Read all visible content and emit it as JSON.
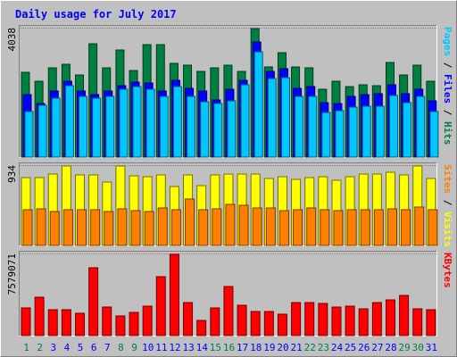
{
  "chart_data": {
    "type": "bar",
    "title": "Daily usage for July 2017",
    "categories": [
      "1",
      "2",
      "3",
      "4",
      "5",
      "6",
      "7",
      "8",
      "9",
      "10",
      "11",
      "12",
      "13",
      "14",
      "15",
      "16",
      "17",
      "18",
      "19",
      "20",
      "21",
      "22",
      "23",
      "24",
      "25",
      "26",
      "27",
      "28",
      "29",
      "30",
      "31"
    ],
    "weekend_days": [
      "1",
      "2",
      "8",
      "9",
      "15",
      "16",
      "22",
      "23",
      "29",
      "30"
    ],
    "panels": [
      {
        "id": "hits-files-pages",
        "ymax_label": "4038",
        "ymax": 4038,
        "right_labels": [
          {
            "text": "Pages",
            "color": "#00c8ff"
          },
          {
            "text": " / ",
            "color": "#000000"
          },
          {
            "text": "Files",
            "color": "#0000ff"
          },
          {
            "text": " / ",
            "color": "#000000"
          },
          {
            "text": "Hits",
            "color": "#008040"
          }
        ],
        "series": [
          {
            "name": "Hits",
            "color": "#008040",
            "values": [
              2640,
              2380,
              2780,
              2890,
              2570,
              3540,
              2780,
              3340,
              2690,
              3510,
              3510,
              2930,
              2870,
              2660,
              2780,
              2860,
              2660,
              4020,
              2800,
              3270,
              2820,
              2790,
              2120,
              2380,
              2210,
              2250,
              2220,
              2940,
              2570,
              2860,
              2360
            ]
          },
          {
            "name": "Files",
            "color": "#0000ff",
            "values": [
              1940,
              1680,
              2070,
              2380,
              2070,
              1940,
              2050,
              2240,
              2340,
              2310,
              2070,
              2400,
              2150,
              2070,
              1780,
              2110,
              2390,
              3580,
              2660,
              2760,
              2140,
              2190,
              1710,
              1680,
              1900,
              1950,
              1980,
              2250,
              1980,
              2110,
              1760
            ]
          },
          {
            "name": "Pages",
            "color": "#00c8ff",
            "values": [
              1420,
              1610,
              1830,
              2230,
              1900,
              1840,
              1880,
              2110,
              2200,
              2120,
              1900,
              2190,
              1880,
              1730,
              1660,
              1750,
              2250,
              3300,
              2460,
              2470,
              1880,
              1880,
              1380,
              1440,
              1550,
              1590,
              1600,
              1920,
              1700,
              1890,
              1420
            ]
          }
        ]
      },
      {
        "id": "visits-sites",
        "ymax_label": "934",
        "ymax": 934,
        "right_labels": [
          {
            "text": "Sites",
            "color": "#ff8000"
          },
          {
            "text": " / ",
            "color": "#000000"
          },
          {
            "text": "Visits",
            "color": "#ffff00"
          }
        ],
        "series": [
          {
            "name": "Visits",
            "color": "#ffff00",
            "values": [
              790,
              790,
              830,
              920,
              820,
              820,
              740,
              920,
              810,
              800,
              820,
              690,
              820,
              700,
              820,
              830,
              830,
              830,
              780,
              800,
              770,
              790,
              800,
              760,
              800,
              830,
              830,
              850,
              820,
              920,
              780
            ]
          },
          {
            "name": "Sites",
            "color": "#ff8000",
            "values": [
              420,
              430,
              390,
              410,
              420,
              420,
              390,
              430,
              400,
              390,
              440,
              420,
              540,
              410,
              430,
              480,
              470,
              440,
              440,
              400,
              420,
              440,
              420,
              400,
              410,
              420,
              410,
              430,
              420,
              450,
              410
            ]
          }
        ]
      },
      {
        "id": "kbytes",
        "ymax_label": "7579071",
        "ymax": 7579071,
        "right_labels": [
          {
            "text": "KBytes",
            "color": "#ff0000"
          }
        ],
        "series": [
          {
            "name": "KBytes",
            "color": "#ff0000",
            "values": [
              2520000,
              3560000,
              2360000,
              2410000,
              2040000,
              6240000,
              2670000,
              1800000,
              2150000,
              2730000,
              5410000,
              7480000,
              3020000,
              1370000,
              2580000,
              4550000,
              2770000,
              2220000,
              2200000,
              1980000,
              3080000,
              3080000,
              2970000,
              2600000,
              2720000,
              2460000,
              3010000,
              3280000,
              3690000,
              2450000,
              2390000
            ]
          }
        ]
      }
    ]
  },
  "colors": {
    "background": "#c0c0c0",
    "title": "#0000ff",
    "day_weekday": "#0000ff",
    "day_weekend": "#008040"
  }
}
